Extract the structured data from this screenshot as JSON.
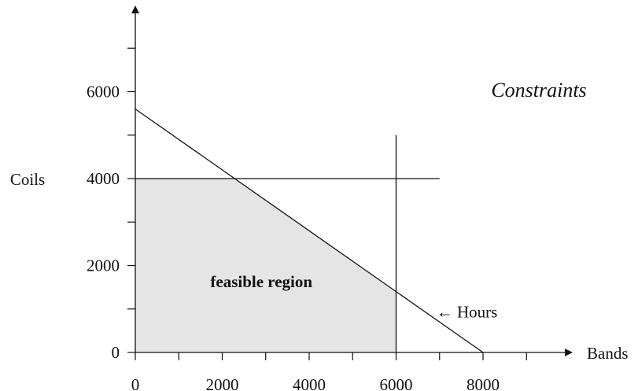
{
  "chart_data": {
    "type": "line",
    "title": "Constraints",
    "xlabel": "Bands",
    "ylabel": "Coils",
    "xlim": [
      0,
      9000
    ],
    "ylim": [
      0,
      7000
    ],
    "x_ticks": [
      0,
      1000,
      2000,
      3000,
      4000,
      5000,
      6000,
      7000,
      8000,
      9000
    ],
    "x_tick_labels": [
      {
        "value": 0,
        "label": "0"
      },
      {
        "value": 2000,
        "label": "2000"
      },
      {
        "value": 4000,
        "label": "4000"
      },
      {
        "value": 6000,
        "label": "6000"
      },
      {
        "value": 8000,
        "label": "8000"
      }
    ],
    "y_ticks": [
      0,
      1000,
      2000,
      3000,
      4000,
      5000,
      6000,
      7000
    ],
    "y_tick_labels": [
      {
        "value": 0,
        "label": "0"
      },
      {
        "value": 2000,
        "label": "2000"
      },
      {
        "value": 4000,
        "label": "4000"
      },
      {
        "value": 6000,
        "label": "6000"
      }
    ],
    "grid": false,
    "series": [
      {
        "name": "Hours",
        "points": [
          [
            0,
            5600
          ],
          [
            8000,
            0
          ]
        ]
      },
      {
        "points": [
          [
            0,
            4000
          ],
          [
            7000,
            4000
          ]
        ]
      },
      {
        "points": [
          [
            6000,
            0
          ],
          [
            6000,
            5000
          ]
        ]
      }
    ],
    "feasible_region": {
      "label": "feasible region",
      "vertices": [
        [
          0,
          0
        ],
        [
          0,
          4000
        ],
        [
          2286,
          4000
        ],
        [
          6000,
          1400
        ],
        [
          6000,
          0
        ]
      ],
      "fill": "#e5e5e5"
    },
    "annotations": [
      {
        "text": "← Hours",
        "x": 7000,
        "y": 900
      }
    ]
  }
}
